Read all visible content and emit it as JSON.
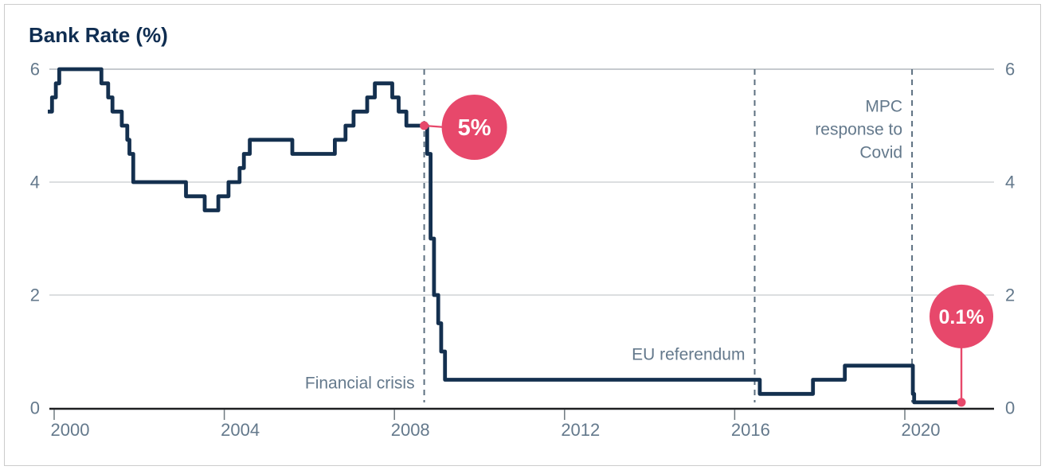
{
  "title": "Bank Rate (%)",
  "colors": {
    "navy_line": "#14304f",
    "title_navy": "#0f2d51",
    "accent_pink": "#e7486b",
    "annotation_gray": "#64798c",
    "tick_label_gray": "#64798c",
    "dashed_line": "#5d7080",
    "gridline": "#c6cace",
    "axis_line": "#1e1f21",
    "tick_mark": "#6f7a80",
    "badge_text": "#ffffff",
    "card_border": "#cccccc"
  },
  "chart_data": {
    "type": "line",
    "subtype": "step",
    "title": "Bank Rate (%)",
    "ylabel": "Bank Rate (%)",
    "xlabel": "",
    "ylim": [
      0,
      6
    ],
    "x_range": [
      1999.85,
      2021.5
    ],
    "grid": "horizontal",
    "legend": "none",
    "y_tick_values": [
      0,
      2,
      4,
      6
    ],
    "y_tick_labels": [
      "0",
      "2",
      "4",
      "6"
    ],
    "y_tick_sides": "both",
    "x_tick_values": [
      2000,
      2004,
      2008,
      2012,
      2016,
      2020
    ],
    "x_tick_labels": [
      "2000",
      "2004",
      "2008",
      "2012",
      "2016",
      "2020"
    ],
    "series": [
      {
        "name": "Bank Rate",
        "steps": [
          {
            "x": 1999.85,
            "y": 5.25
          },
          {
            "x": 1999.95,
            "y": 5.5
          },
          {
            "x": 2000.04,
            "y": 5.75
          },
          {
            "x": 2000.12,
            "y": 6.0
          },
          {
            "x": 2001.11,
            "y": 5.75
          },
          {
            "x": 2001.27,
            "y": 5.5
          },
          {
            "x": 2001.37,
            "y": 5.25
          },
          {
            "x": 2001.59,
            "y": 5.0
          },
          {
            "x": 2001.72,
            "y": 4.75
          },
          {
            "x": 2001.77,
            "y": 4.5
          },
          {
            "x": 2001.86,
            "y": 4.0
          },
          {
            "x": 2003.1,
            "y": 3.75
          },
          {
            "x": 2003.54,
            "y": 3.5
          },
          {
            "x": 2003.86,
            "y": 3.75
          },
          {
            "x": 2004.1,
            "y": 4.0
          },
          {
            "x": 2004.36,
            "y": 4.25
          },
          {
            "x": 2004.46,
            "y": 4.5
          },
          {
            "x": 2004.6,
            "y": 4.75
          },
          {
            "x": 2005.6,
            "y": 4.5
          },
          {
            "x": 2006.6,
            "y": 4.75
          },
          {
            "x": 2006.85,
            "y": 5.0
          },
          {
            "x": 2007.04,
            "y": 5.25
          },
          {
            "x": 2007.36,
            "y": 5.5
          },
          {
            "x": 2007.54,
            "y": 5.75
          },
          {
            "x": 2007.95,
            "y": 5.5
          },
          {
            "x": 2008.1,
            "y": 5.25
          },
          {
            "x": 2008.28,
            "y": 5.0
          },
          {
            "x": 2008.77,
            "y": 4.5
          },
          {
            "x": 2008.85,
            "y": 3.0
          },
          {
            "x": 2008.93,
            "y": 2.0
          },
          {
            "x": 2009.03,
            "y": 1.5
          },
          {
            "x": 2009.1,
            "y": 1.0
          },
          {
            "x": 2009.19,
            "y": 0.5
          },
          {
            "x": 2016.59,
            "y": 0.25
          },
          {
            "x": 2017.84,
            "y": 0.5
          },
          {
            "x": 2018.59,
            "y": 0.75
          },
          {
            "x": 2020.19,
            "y": 0.25
          },
          {
            "x": 2020.22,
            "y": 0.1
          },
          {
            "x": 2021.33,
            "y": 0.1
          }
        ]
      }
    ],
    "annotations": [
      {
        "id": "financial-crisis",
        "x": 2008.7,
        "lines": [
          "Financial crisis"
        ],
        "line_center_ys": [
          482
        ]
      },
      {
        "id": "eu-referendum",
        "x": 2016.47,
        "lines": [
          "EU referendum"
        ],
        "line_center_ys": [
          446
        ]
      },
      {
        "id": "mpc-covid",
        "x": 2020.17,
        "lines": [
          "MPC",
          "response to",
          "Covid"
        ],
        "line_center_ys": [
          134,
          163,
          192
        ]
      }
    ],
    "callouts": [
      {
        "id": "callout-5pct",
        "text": "5%",
        "anchor_x": 2008.7,
        "anchor_y": 5.0,
        "circle_dx": 63,
        "circle_dy": 2,
        "radius": 41,
        "font_size": 29,
        "connector": "horizontal"
      },
      {
        "id": "callout-01pct",
        "text": "0.1%",
        "anchor_x": 2021.33,
        "anchor_y": 0.1,
        "circle_dx": 0,
        "circle_dy": -108,
        "radius": 40,
        "font_size": 25,
        "connector": "vertical"
      }
    ]
  }
}
